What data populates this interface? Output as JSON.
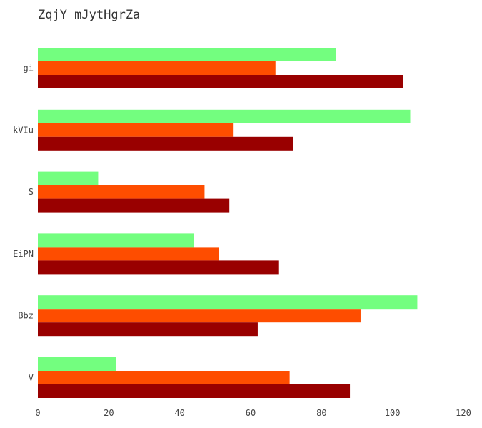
{
  "chart_data": {
    "type": "bar",
    "orientation": "horizontal",
    "title": "ZqjY mJytHgrZa",
    "xlabel": "",
    "ylabel": "",
    "categories": [
      "gi",
      "kVIu",
      "S",
      "EiPN",
      "Bbz",
      "V"
    ],
    "series": [
      {
        "color": "#73fe7f",
        "values": [
          84,
          105,
          17,
          44,
          107,
          22
        ]
      },
      {
        "color": "#fe4d00",
        "values": [
          67,
          55,
          47,
          51,
          91,
          71
        ]
      },
      {
        "color": "#990000",
        "values": [
          103,
          72,
          54,
          68,
          62,
          88
        ]
      }
    ],
    "xlim": [
      0,
      120
    ],
    "xticks": [
      0,
      20,
      40,
      60,
      80,
      100,
      120
    ],
    "grid": false,
    "legend": "none"
  }
}
